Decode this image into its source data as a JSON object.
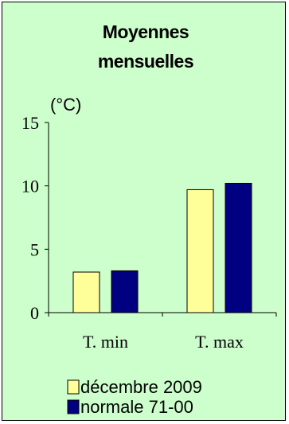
{
  "chart_data": {
    "type": "bar",
    "title_lines": [
      "Moyennes",
      "mensuelles"
    ],
    "unit_label": "(°C)",
    "categories": [
      "T. min",
      "T. max"
    ],
    "series": [
      {
        "name": "décembre 2009",
        "values": [
          3.2,
          9.7
        ],
        "color": "#ffff99"
      },
      {
        "name": "normale 71-00",
        "values": [
          3.3,
          10.2
        ],
        "color": "#000080"
      }
    ],
    "ylim": [
      0,
      15
    ],
    "yticks": [
      "0",
      "5",
      "10",
      "15"
    ],
    "ytick_values": [
      0,
      5,
      10,
      15
    ],
    "grid": false,
    "legend_position": "bottom-left"
  }
}
